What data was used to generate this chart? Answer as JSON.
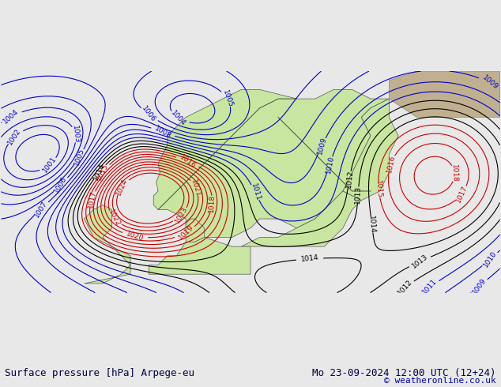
{
  "title_left": "Surface pressure [hPa] Arpege-eu",
  "title_right": "Mo 23-09-2024 12:00 UTC (12+24)",
  "copyright": "© weatheronline.co.uk",
  "bg_color": "#e8e8e8",
  "land_color": "#c8e6a0",
  "sea_color": "#dcdcdc",
  "text_color_black": "#000000",
  "text_color_blue": "#0000cc",
  "isobar_color_red": "#cc0000",
  "isobar_color_blue": "#0000cc",
  "isobar_color_black": "#000000",
  "bottom_bar_color": "#ffffff",
  "font_size_labels": 9,
  "font_size_bottom": 9,
  "font_size_copyright": 8
}
